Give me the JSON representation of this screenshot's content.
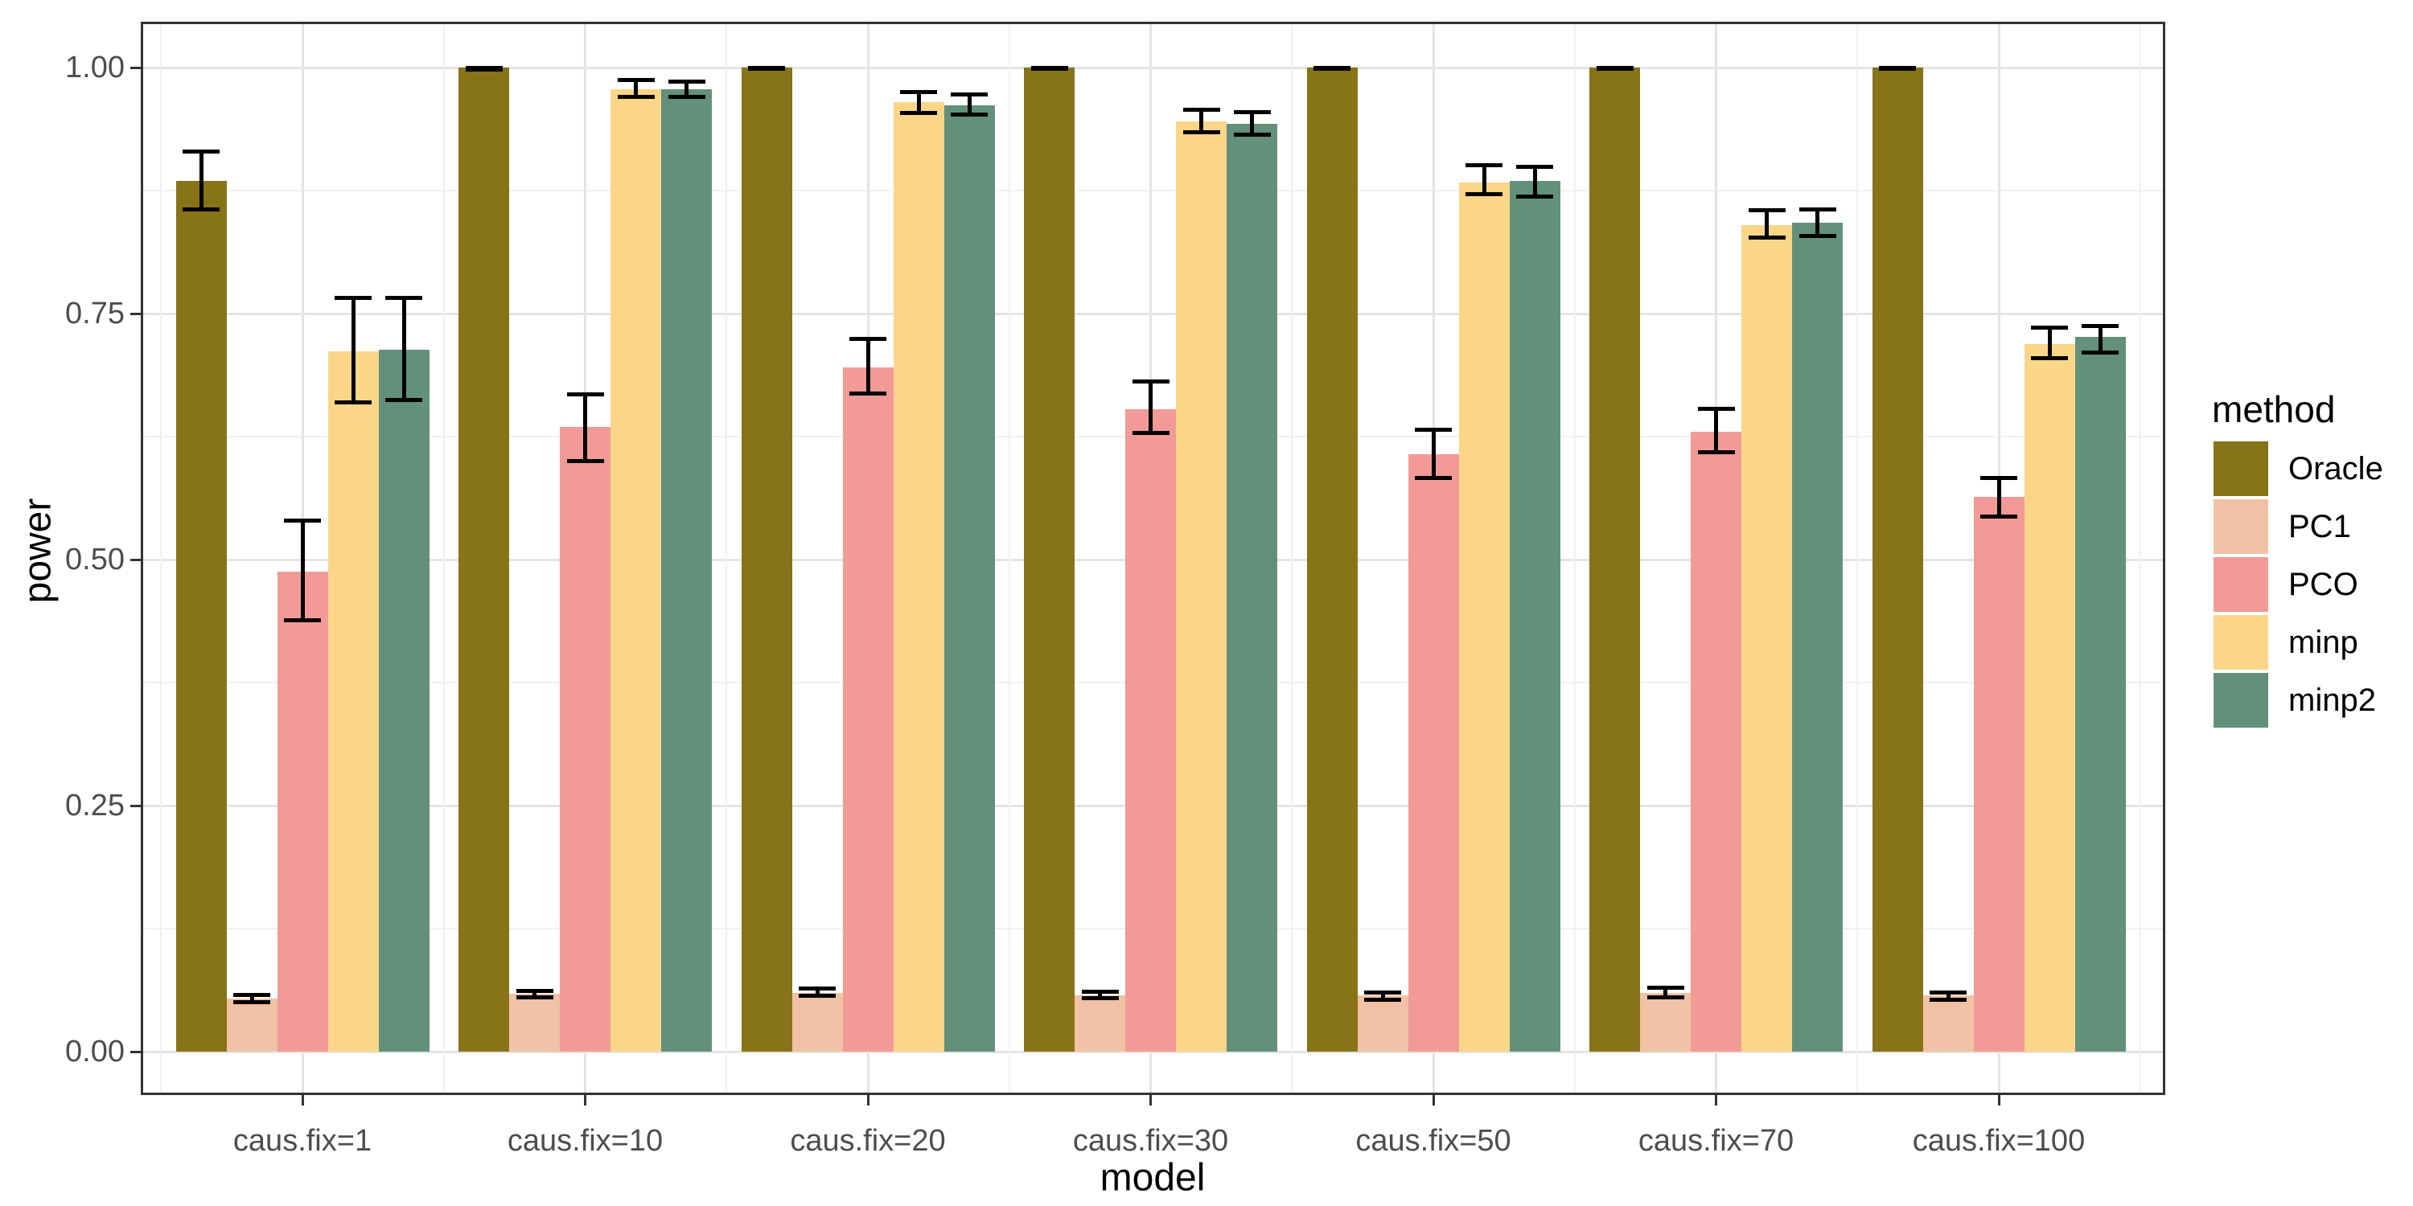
{
  "chart_data": {
    "type": "bar",
    "title": "",
    "xlabel": "model",
    "ylabel": "power",
    "legend_title": "method",
    "legend_position": "right",
    "grid": true,
    "ylim": [
      0,
      1
    ],
    "yticks": [
      0,
      0.25,
      0.5,
      0.75,
      1
    ],
    "ytick_labels": [
      "0.00",
      "0.25",
      "0.50",
      "0.75",
      "1.00"
    ],
    "categories": [
      "caus.fix=1",
      "caus.fix=10",
      "caus.fix=20",
      "caus.fix=30",
      "caus.fix=50",
      "caus.fix=70",
      "caus.fix=100"
    ],
    "series": [
      {
        "name": "Oracle",
        "color": "#877318",
        "values": [
          0.885,
          1.0,
          1.0,
          1.0,
          1.0,
          1.0,
          1.0
        ],
        "ci_low": [
          0.856,
          0.998,
          0.999,
          0.999,
          0.999,
          0.999,
          0.999
        ],
        "ci_high": [
          0.915,
          1.0,
          1.0,
          1.0,
          1.0,
          1.0,
          1.0
        ]
      },
      {
        "name": "PC1",
        "color": "#F1C2A5",
        "values": [
          0.054,
          0.059,
          0.06,
          0.057,
          0.057,
          0.06,
          0.057
        ],
        "ci_low": [
          0.05,
          0.055,
          0.057,
          0.054,
          0.053,
          0.055,
          0.053
        ],
        "ci_high": [
          0.058,
          0.062,
          0.064,
          0.061,
          0.06,
          0.065,
          0.06
        ]
      },
      {
        "name": "PCO",
        "color": "#F29A97",
        "values": [
          0.488,
          0.635,
          0.695,
          0.653,
          0.607,
          0.63,
          0.564
        ],
        "ci_low": [
          0.438,
          0.6,
          0.669,
          0.629,
          0.583,
          0.609,
          0.544
        ],
        "ci_high": [
          0.54,
          0.668,
          0.724,
          0.681,
          0.632,
          0.653,
          0.583
        ]
      },
      {
        "name": "minp",
        "color": "#FBD689",
        "values": [
          0.712,
          0.978,
          0.965,
          0.945,
          0.883,
          0.84,
          0.719
        ],
        "ci_low": [
          0.66,
          0.97,
          0.954,
          0.934,
          0.871,
          0.827,
          0.705
        ],
        "ci_high": [
          0.766,
          0.987,
          0.975,
          0.957,
          0.901,
          0.855,
          0.736
        ]
      },
      {
        "name": "minp2",
        "color": "#63907B",
        "values": [
          0.713,
          0.978,
          0.962,
          0.943,
          0.885,
          0.842,
          0.726
        ],
        "ci_low": [
          0.662,
          0.97,
          0.952,
          0.932,
          0.869,
          0.829,
          0.71
        ],
        "ci_high": [
          0.766,
          0.986,
          0.973,
          0.955,
          0.899,
          0.856,
          0.737
        ]
      }
    ]
  },
  "colors": {
    "background": "#FFFFFF",
    "panel_border": "#333333",
    "grid_major": "#E4E4E4",
    "grid_minor": "#F1F1F1",
    "axis_text": "#4D4D4D",
    "tick_mark": "#333333",
    "error_bar": "#000000"
  }
}
